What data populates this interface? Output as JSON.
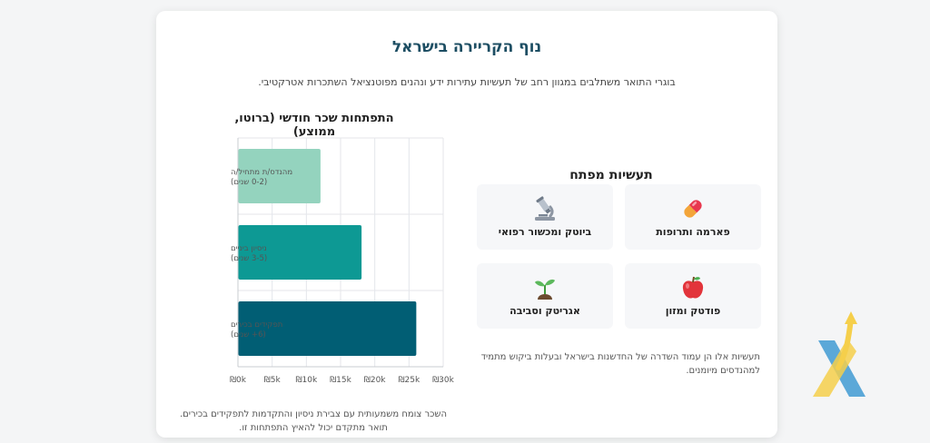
{
  "header": {
    "title": "נוף הקריירה בישראל",
    "subtitle": "בוגרי התואר משתלבים במגוון רחב של תעשיות עתירות ידע ונהנים מפוטנציאל השתכרות אטרקטיבי."
  },
  "chart": {
    "caption": "השכר צומח משמעותית עם צבירת ניסיון והתקדמות לתפקידים בכירים. תואר מתקדם יכול להאיץ התפתחות זו."
  },
  "chart_data": {
    "type": "bar",
    "orientation": "horizontal",
    "title": "התפתחות שכר חודשי (ברוטו, ממוצע)",
    "categories": [
      [
        "מהנדס/ת מתחיל/ה",
        "(0-2 שנים)"
      ],
      [
        "ניסיון ביניים",
        "(3-5 שנים)"
      ],
      [
        "תפקידים בכירים",
        "(6+ שנים)"
      ]
    ],
    "values": [
      12000,
      18000,
      26000
    ],
    "colors": [
      "#94d3be",
      "#0d9994",
      "#015e74"
    ],
    "xlim": [
      0,
      30000
    ],
    "ticks": [
      0,
      5000,
      10000,
      15000,
      20000,
      25000,
      30000
    ],
    "tick_labels": [
      "₪0k",
      "₪5k",
      "₪10k",
      "₪15k",
      "₪20k",
      "₪25k",
      "₪30k"
    ],
    "grid": true
  },
  "industries": {
    "title": "תעשיות מפתח",
    "items": [
      {
        "label": "פארמה ותרופות",
        "icon": "pill-icon"
      },
      {
        "label": "ביוטק ומכשור רפואי",
        "icon": "microscope-icon"
      },
      {
        "label": "פודטק ומזון",
        "icon": "apple-icon"
      },
      {
        "label": "אגריטק וסביבה",
        "icon": "seedling-icon"
      }
    ],
    "note": "תעשיות אלו הן עמוד השדרה של החדשנות בישראל ובעלות ביקוש מתמיד למהנדסים מיומנים."
  },
  "colors": {
    "title": "#1d4e63",
    "bar_light": "#94d3be",
    "bar_mid": "#0d9994",
    "bar_dark": "#015e74",
    "logo_blue": "#5ba8d8",
    "logo_yellow": "#f5cf4b"
  }
}
